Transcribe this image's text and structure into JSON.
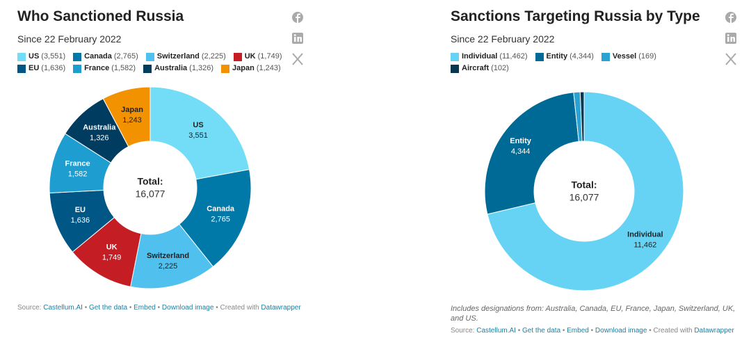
{
  "chart_data": [
    {
      "type": "donut",
      "title": "Who Sanctioned Russia",
      "subtitle": "Since 22 February 2022",
      "categories": [
        "US",
        "Canada",
        "Switzerland",
        "UK",
        "EU",
        "France",
        "Australia",
        "Japan"
      ],
      "values": [
        3551,
        2765,
        2225,
        1749,
        1636,
        1582,
        1326,
        1243
      ],
      "value_labels": [
        "3,551",
        "2,765",
        "2,225",
        "1,749",
        "1,636",
        "1,582",
        "1,326",
        "1,243"
      ],
      "legend_labels": [
        "(3,551)",
        "(2,765)",
        "(2,225)",
        "(1,749)",
        "(1,636)",
        "(1,582)",
        "(1,326)",
        "(1,243)"
      ],
      "colors": [
        "#73dcf7",
        "#0078a8",
        "#50c1ee",
        "#c41e24",
        "#005685",
        "#1d9dd0",
        "#003c5f",
        "#f39200"
      ],
      "total_title": "Total:",
      "total": 16077,
      "total_label": "16,077",
      "source_label": "Source:",
      "source": "Castellum.AI",
      "separator": "•",
      "links": [
        "Get the data",
        "Embed",
        "Download image"
      ],
      "credit": "Created with",
      "credit_link": "Datawrapper"
    },
    {
      "type": "donut",
      "title": "Sanctions Targeting Russia by Type",
      "subtitle": "Since 22 February 2022",
      "categories": [
        "Individual",
        "Entity",
        "Vessel",
        "Aircraft"
      ],
      "values": [
        11462,
        4344,
        169,
        102
      ],
      "value_labels": [
        "11,462",
        "4,344",
        "169",
        "102"
      ],
      "legend_labels": [
        "(11,462)",
        "(4,344)",
        "(169)",
        "(102)"
      ],
      "colors": [
        "#66d3f5",
        "#006a96",
        "#2aa3d3",
        "#08374f"
      ],
      "total_title": "Total:",
      "total": 16077,
      "total_label": "16,077",
      "note": "Includes designations from: Australia, Canada, EU, France, Japan, Switzerland, UK, and US.",
      "source_label": "Source:",
      "source": "Castellum.AI",
      "separator": "•",
      "links": [
        "Get the data",
        "Embed",
        "Download image"
      ],
      "credit": "Created with",
      "credit_link": "Datawrapper"
    }
  ]
}
